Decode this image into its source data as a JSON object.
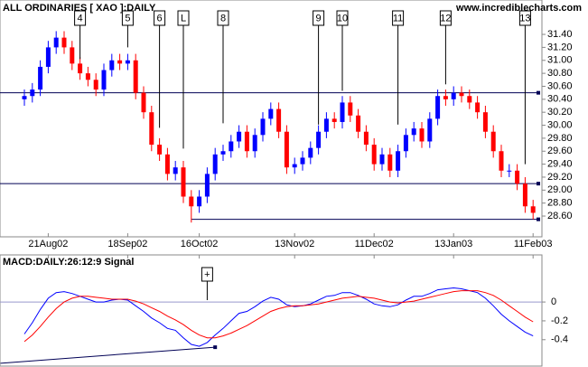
{
  "chart_data": [
    {
      "type": "candlestick",
      "title": "ALL ORDINARIES [ XAO ]:DAILY",
      "source": "www.incrediblecharts.com",
      "categories": [
        null,
        null,
        null,
        "21Aug02",
        null,
        null,
        null,
        null,
        null,
        null,
        null,
        null,
        null,
        "18Sep02",
        null,
        null,
        null,
        null,
        null,
        null,
        null,
        null,
        "16Oct02",
        null,
        null,
        null,
        null,
        null,
        null,
        null,
        null,
        null,
        null,
        null,
        "13Nov02",
        null,
        null,
        null,
        null,
        null,
        null,
        null,
        null,
        null,
        "11Dec02",
        null,
        null,
        null,
        null,
        null,
        null,
        null,
        null,
        null,
        "13Jan03",
        null,
        null,
        null,
        null,
        null,
        null,
        null,
        null,
        null,
        "11Feb03"
      ],
      "open": [
        30.4,
        30.45,
        30.55,
        30.9,
        31.2,
        31.35,
        31.2,
        30.95,
        30.8,
        30.7,
        30.55,
        30.85,
        31.0,
        30.95,
        31.0,
        30.5,
        30.2,
        29.7,
        29.55,
        29.25,
        29.35,
        28.9,
        28.75,
        28.9,
        29.25,
        29.55,
        29.6,
        29.75,
        29.9,
        29.6,
        29.85,
        30.1,
        30.25,
        29.9,
        29.35,
        29.4,
        29.5,
        29.65,
        29.9,
        30.1,
        30.05,
        30.35,
        30.15,
        29.9,
        29.7,
        29.4,
        29.55,
        29.3,
        29.6,
        29.85,
        29.95,
        29.75,
        30.1,
        30.45,
        30.4,
        30.5,
        30.45,
        30.35,
        30.2,
        29.9,
        29.6,
        29.3,
        29.3,
        29.1,
        28.75
      ],
      "high": [
        30.55,
        30.65,
        31.0,
        31.3,
        31.45,
        31.45,
        31.3,
        31.05,
        30.9,
        30.8,
        30.95,
        31.1,
        31.1,
        31.1,
        31.1,
        30.6,
        30.3,
        29.8,
        29.65,
        29.45,
        29.45,
        29.0,
        29.0,
        29.35,
        29.65,
        29.7,
        29.85,
        30.0,
        30.0,
        29.95,
        30.2,
        30.35,
        30.35,
        30.0,
        29.5,
        29.6,
        29.75,
        30.0,
        30.2,
        30.2,
        30.45,
        30.45,
        30.25,
        30.0,
        29.8,
        29.65,
        29.65,
        29.7,
        29.95,
        30.05,
        30.05,
        30.2,
        30.55,
        30.55,
        30.6,
        30.6,
        30.55,
        30.45,
        30.3,
        30.0,
        29.7,
        29.4,
        29.4,
        29.2,
        28.85
      ],
      "low": [
        30.3,
        30.35,
        30.45,
        30.8,
        31.1,
        31.1,
        30.85,
        30.7,
        30.6,
        30.45,
        30.45,
        30.75,
        30.85,
        30.85,
        30.4,
        30.1,
        29.6,
        29.45,
        29.15,
        29.15,
        28.8,
        28.5,
        28.65,
        28.8,
        29.15,
        29.45,
        29.5,
        29.65,
        29.5,
        29.5,
        29.75,
        30.0,
        29.8,
        29.25,
        29.25,
        29.3,
        29.4,
        29.55,
        29.8,
        29.95,
        29.95,
        30.05,
        29.8,
        29.6,
        29.3,
        29.3,
        29.2,
        29.2,
        29.5,
        29.75,
        29.65,
        29.65,
        30.0,
        30.3,
        30.3,
        30.35,
        30.25,
        30.1,
        29.8,
        29.5,
        29.2,
        29.2,
        29.0,
        28.65,
        28.55
      ],
      "close": [
        30.45,
        30.55,
        30.9,
        31.2,
        31.35,
        31.2,
        30.95,
        30.8,
        30.7,
        30.55,
        30.85,
        31.0,
        30.95,
        31.0,
        30.5,
        30.2,
        29.7,
        29.55,
        29.25,
        29.35,
        28.9,
        28.75,
        28.9,
        29.25,
        29.55,
        29.6,
        29.75,
        29.9,
        29.6,
        29.85,
        30.1,
        30.25,
        29.9,
        29.35,
        29.4,
        29.5,
        29.65,
        29.9,
        30.1,
        30.05,
        30.35,
        30.15,
        29.9,
        29.7,
        29.4,
        29.55,
        29.3,
        29.6,
        29.85,
        29.95,
        29.75,
        30.1,
        30.45,
        30.4,
        30.5,
        30.45,
        30.35,
        30.2,
        29.9,
        29.6,
        29.3,
        29.3,
        29.1,
        28.75,
        28.65
      ],
      "up_color": "#0000ff",
      "down_color": "#ff0000",
      "ylim": [
        28.28,
        31.93
      ],
      "yticks": [
        {
          "value": 28.6,
          "label": "28.60"
        },
        {
          "value": 28.8,
          "label": "28.80"
        },
        {
          "value": 29.0,
          "label": "29.00"
        },
        {
          "value": 29.2,
          "label": "29.20"
        },
        {
          "value": 29.4,
          "label": "29.40"
        },
        {
          "value": 29.6,
          "label": "29.60"
        },
        {
          "value": 29.8,
          "label": "29.80"
        },
        {
          "value": 30.0,
          "label": "30.00"
        },
        {
          "value": 30.2,
          "label": "30.20"
        },
        {
          "value": 30.4,
          "label": "30.40"
        },
        {
          "value": 30.6,
          "label": "30.60"
        },
        {
          "value": 30.8,
          "label": "30.80"
        },
        {
          "value": 31.0,
          "label": "31.00"
        },
        {
          "value": 31.2,
          "label": "31.20"
        },
        {
          "value": 31.4,
          "label": "31.40"
        }
      ],
      "hlines": [
        {
          "value": 30.5
        },
        {
          "value": 29.1
        },
        {
          "value": 28.55,
          "from": 21
        }
      ],
      "annotations": [
        {
          "label": "4",
          "at": 7,
          "value": 31.02
        },
        {
          "label": "5",
          "at": 13,
          "value": 31.2
        },
        {
          "label": "6",
          "at": 17,
          "value": 29.96
        },
        {
          "label": "L",
          "at": 20,
          "value": 29.64
        },
        {
          "label": "8",
          "at": 25,
          "value": 30.03
        },
        {
          "label": "9",
          "at": 37,
          "value": 30.01
        },
        {
          "label": "10",
          "at": 40,
          "value": 30.53
        },
        {
          "label": "11",
          "at": 47,
          "value": 30.01
        },
        {
          "label": "12",
          "at": 53,
          "value": 30.63
        },
        {
          "label": "13",
          "at": 63,
          "value": 29.4
        }
      ]
    },
    {
      "type": "line",
      "title": "MACD:DAILY:26:12:9 Signal",
      "series": [
        {
          "name": "MACD",
          "color": "#0000ff",
          "values": [
            -0.34,
            -0.22,
            -0.08,
            0.04,
            0.1,
            0.11,
            0.09,
            0.06,
            0.03,
            0.0,
            0.0,
            0.02,
            0.03,
            0.02,
            -0.04,
            -0.1,
            -0.17,
            -0.22,
            -0.28,
            -0.3,
            -0.38,
            -0.45,
            -0.47,
            -0.43,
            -0.35,
            -0.28,
            -0.2,
            -0.12,
            -0.1,
            -0.05,
            0.01,
            0.05,
            0.03,
            -0.03,
            -0.05,
            -0.04,
            -0.02,
            0.02,
            0.06,
            0.07,
            0.1,
            0.1,
            0.07,
            0.03,
            -0.02,
            -0.04,
            -0.05,
            -0.03,
            0.02,
            0.06,
            0.06,
            0.09,
            0.13,
            0.14,
            0.15,
            0.14,
            0.12,
            0.1,
            0.04,
            -0.04,
            -0.13,
            -0.2,
            -0.26,
            -0.32,
            -0.36
          ]
        },
        {
          "name": "Signal",
          "color": "#ff0000",
          "values": [
            -0.42,
            -0.35,
            -0.26,
            -0.16,
            -0.07,
            0.0,
            0.04,
            0.06,
            0.06,
            0.05,
            0.04,
            0.03,
            0.03,
            0.03,
            0.01,
            -0.02,
            -0.06,
            -0.1,
            -0.15,
            -0.19,
            -0.24,
            -0.3,
            -0.35,
            -0.38,
            -0.38,
            -0.36,
            -0.33,
            -0.29,
            -0.25,
            -0.2,
            -0.15,
            -0.1,
            -0.07,
            -0.05,
            -0.04,
            -0.04,
            -0.03,
            -0.02,
            0.0,
            0.02,
            0.04,
            0.05,
            0.06,
            0.05,
            0.04,
            0.02,
            0.0,
            -0.01,
            0.0,
            0.01,
            0.03,
            0.05,
            0.07,
            0.09,
            0.11,
            0.12,
            0.12,
            0.12,
            0.1,
            0.07,
            0.02,
            -0.04,
            -0.1,
            -0.16,
            -0.21
          ]
        }
      ],
      "ylim": [
        -0.69,
        0.5
      ],
      "yticks": [
        0,
        -0.2,
        -0.4
      ],
      "trendline": {
        "at": [
          -3,
          24
        ],
        "values": [
          -0.65,
          -0.48
        ]
      },
      "annotations": [
        {
          "label": "+",
          "at": 23,
          "value": 0.02
        }
      ]
    }
  ]
}
